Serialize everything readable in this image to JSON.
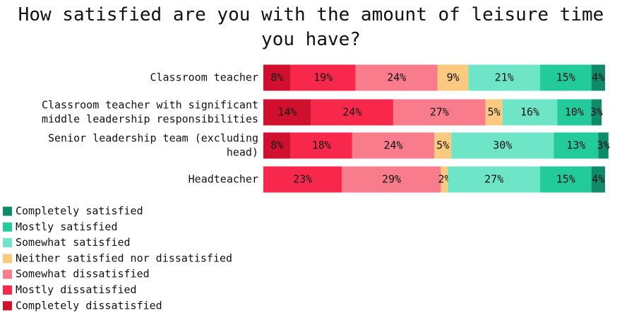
{
  "chart_data": {
    "type": "stacked-bar",
    "title": "How satisfied are you with the amount of leisure time you have?",
    "categories": [
      [
        "Classroom teacher"
      ],
      [
        "Classroom teacher with significant",
        "middle leadership responsibilities"
      ],
      [
        "Senior leadership team (excluding",
        "head)"
      ],
      [
        "Headteacher"
      ]
    ],
    "xlim": [
      0,
      100
    ],
    "series": [
      {
        "name": "Completely dissatisfied",
        "color": "#d0102e",
        "values": [
          8,
          14,
          8,
          null
        ],
        "value_labels": [
          "8%",
          "14%",
          "8%",
          null
        ]
      },
      {
        "name": "Mostly dissatisfied",
        "color": "#f7284c",
        "values": [
          19,
          24,
          18,
          23
        ],
        "value_labels": [
          "19%",
          "24%",
          "18%",
          "23%"
        ]
      },
      {
        "name": "Somewhat dissatisfied",
        "color": "#f87c8c",
        "values": [
          24,
          27,
          24,
          29
        ],
        "value_labels": [
          "24%",
          "27%",
          "24%",
          "29%"
        ]
      },
      {
        "name": "Neither satisfied nor dissatisfied",
        "color": "#fbc97f",
        "values": [
          9,
          5,
          5,
          2
        ],
        "value_labels": [
          "9%",
          "5%",
          "5%",
          "2%"
        ]
      },
      {
        "name": "Somewhat satisfied",
        "color": "#6fe5c8",
        "values": [
          21,
          16,
          30,
          27
        ],
        "value_labels": [
          "21%",
          "16%",
          "30%",
          "27%"
        ]
      },
      {
        "name": "Mostly satisfied",
        "color": "#23cb9b",
        "values": [
          15,
          10,
          13,
          15
        ],
        "value_labels": [
          "15%",
          "10%",
          "13%",
          "15%"
        ]
      },
      {
        "name": "Completely satisfied",
        "color": "#0f8b6b",
        "values": [
          4,
          3,
          3,
          4
        ],
        "value_labels": [
          "4%",
          "3%",
          "3%",
          "4%"
        ]
      }
    ]
  }
}
